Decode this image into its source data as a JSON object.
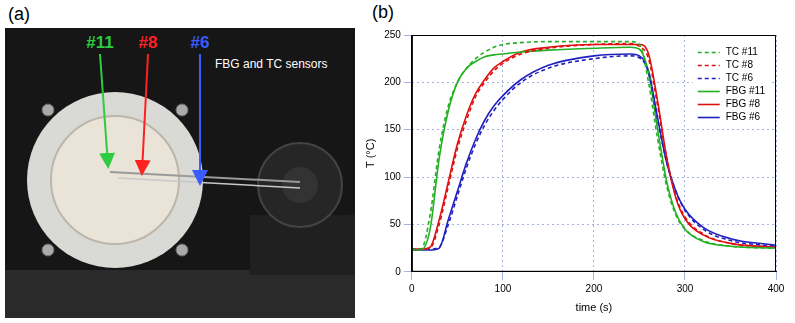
{
  "panel_a": {
    "panel_label": "(a)",
    "annotations": [
      {
        "text": "#11",
        "color": "#2ecc40"
      },
      {
        "text": "#8",
        "color": "#ff2020"
      },
      {
        "text": "#6",
        "color": "#3a5cff"
      }
    ],
    "caption": "FBG and TC sensors"
  },
  "chart_data": {
    "type": "line",
    "panel_label": "(b)",
    "x_label": "time (s)",
    "y_label": "T (°C)",
    "x": [
      0,
      10,
      20,
      30,
      40,
      50,
      60,
      70,
      80,
      90,
      100,
      120,
      150,
      200,
      240,
      250,
      260,
      270,
      280,
      290,
      300,
      320,
      350,
      400
    ],
    "series": [
      {
        "name": "TC #11",
        "color": "#22b022",
        "line_style": "dashed",
        "values": [
          24,
          24,
          60,
          130,
          175,
          200,
          215,
          225,
          232,
          237,
          240,
          242,
          243,
          243,
          243,
          240,
          200,
          140,
          90,
          60,
          45,
          33,
          27,
          25
        ]
      },
      {
        "name": "TC #8",
        "color": "#e01010",
        "line_style": "dashed",
        "values": [
          24,
          24,
          25,
          50,
          90,
          130,
          160,
          185,
          200,
          212,
          220,
          230,
          236,
          240,
          241,
          238,
          225,
          175,
          120,
          80,
          58,
          40,
          30,
          26
        ]
      },
      {
        "name": "TC #6",
        "color": "#2020c0",
        "line_style": "dashed",
        "values": [
          24,
          24,
          24,
          26,
          50,
          80,
          110,
          135,
          155,
          170,
          182,
          200,
          215,
          225,
          228,
          226,
          210,
          160,
          115,
          85,
          65,
          45,
          33,
          27
        ]
      },
      {
        "name": "FBG #11",
        "color": "#22b022",
        "line_style": "solid",
        "values": [
          23,
          23,
          45,
          120,
          170,
          200,
          215,
          222,
          227,
          229,
          230,
          232,
          234,
          236,
          237,
          235,
          210,
          150,
          95,
          62,
          45,
          32,
          27,
          25
        ]
      },
      {
        "name": "FBG #8",
        "color": "#e01010",
        "line_style": "solid",
        "values": [
          24,
          24,
          26,
          55,
          95,
          135,
          165,
          188,
          203,
          215,
          222,
          232,
          237,
          240,
          240,
          240,
          230,
          180,
          120,
          78,
          56,
          39,
          30,
          26
        ]
      },
      {
        "name": "FBG #6",
        "color": "#2020c0",
        "line_style": "solid",
        "values": [
          23,
          23,
          23,
          25,
          55,
          85,
          115,
          140,
          160,
          175,
          186,
          203,
          218,
          228,
          230,
          228,
          212,
          162,
          115,
          85,
          66,
          47,
          35,
          28
        ]
      }
    ],
    "xlim": [
      0,
      400
    ],
    "xticks": [
      0,
      100,
      200,
      300,
      400
    ],
    "ylim": [
      0,
      250
    ],
    "yticks": [
      0,
      50,
      100,
      150,
      200,
      250
    ],
    "grid": true,
    "legend": "upper right"
  }
}
